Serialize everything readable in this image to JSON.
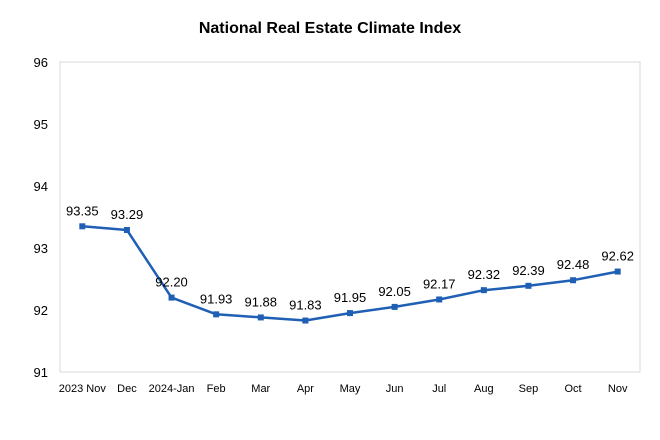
{
  "chart_data": {
    "type": "line",
    "title": "National Real Estate Climate Index",
    "xlabel": "",
    "ylabel": "",
    "categories": [
      "2023 Nov",
      "Dec",
      "2024-Jan",
      "Feb",
      "Mar",
      "Apr",
      "May",
      "Jun",
      "Jul",
      "Aug",
      "Sep",
      "Oct",
      "Nov"
    ],
    "series": [
      {
        "values": [
          93.35,
          93.29,
          92.2,
          91.93,
          91.88,
          91.83,
          91.95,
          92.05,
          92.17,
          92.32,
          92.39,
          92.48,
          92.62
        ],
        "labels": [
          "93.35",
          "93.29",
          "92.20",
          "91.93",
          "91.88",
          "91.83",
          "91.95",
          "92.05",
          "92.17",
          "92.32",
          "92.39",
          "92.48",
          "92.62"
        ],
        "color": "#1F5FB4",
        "marker": "square"
      }
    ],
    "ylim": [
      91,
      96
    ],
    "yticks": [
      "91",
      "92",
      "93",
      "94",
      "95",
      "96"
    ],
    "grid": false,
    "legend": "none"
  }
}
